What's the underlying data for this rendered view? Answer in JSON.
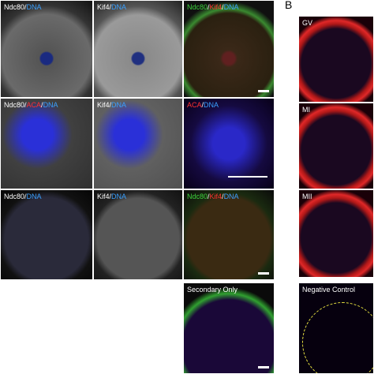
{
  "panel_b_label": "B",
  "grid": [
    [
      {
        "parts": [
          "Ndc80",
          "/",
          "DNA"
        ],
        "colors": [
          "#ffffff",
          "#ffffff",
          "#3aa0ff"
        ]
      },
      {
        "parts": [
          "Kif4",
          "/",
          "DNA"
        ],
        "colors": [
          "#ffffff",
          "#ffffff",
          "#3aa0ff"
        ]
      },
      {
        "parts": [
          "Ndc80",
          "/",
          "Kif4",
          "/",
          "DNA"
        ],
        "colors": [
          "#3cd23c",
          "#ffffff",
          "#ff3030",
          "#ffffff",
          "#3aa0ff"
        ]
      }
    ],
    [
      {
        "parts": [
          "Ndc80",
          "/",
          "ACA",
          "/",
          "DNA"
        ],
        "colors": [
          "#ffffff",
          "#ffffff",
          "#ff3030",
          "#ffffff",
          "#3aa0ff"
        ]
      },
      {
        "parts": [
          "Kif4",
          "/",
          "DNA"
        ],
        "colors": [
          "#ffffff",
          "#ffffff",
          "#3aa0ff"
        ]
      },
      {
        "parts": [
          "ACA",
          "/",
          "DNA"
        ],
        "colors": [
          "#ff3030",
          "#ffffff",
          "#3aa0ff"
        ]
      }
    ],
    [
      {
        "parts": [
          "Ndc80",
          "/",
          "DNA"
        ],
        "colors": [
          "#ffffff",
          "#ffffff",
          "#3aa0ff"
        ]
      },
      {
        "parts": [
          "Kif4",
          "/",
          "DNA"
        ],
        "colors": [
          "#ffffff",
          "#ffffff",
          "#3aa0ff"
        ]
      },
      {
        "parts": [
          "Ndc80",
          "/",
          "Kif4",
          "/",
          "DNA"
        ],
        "colors": [
          "#3cd23c",
          "#ffffff",
          "#ff3030",
          "#ffffff",
          "#3aa0ff"
        ]
      }
    ]
  ],
  "panel_b": [
    "GV",
    "MI",
    "MII"
  ],
  "secondary": "Secondary Only",
  "negative": "Negative Control"
}
